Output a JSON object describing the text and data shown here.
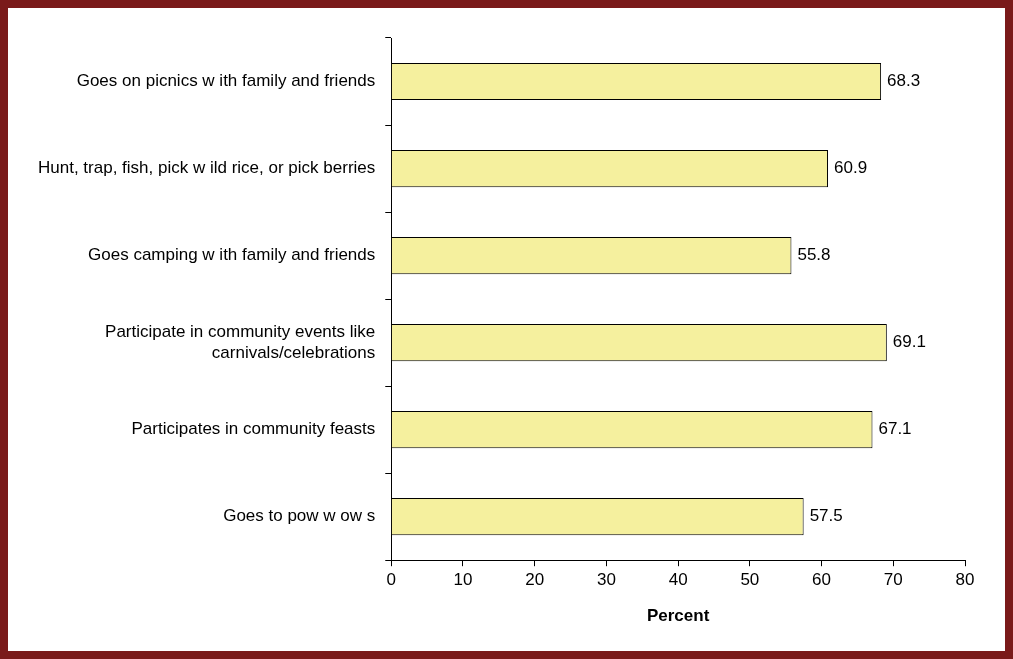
{
  "chart_data": {
    "type": "bar",
    "orientation": "horizontal",
    "xlabel": "Percent",
    "categories": [
      "Goes on picnics w ith family and friends",
      "Hunt, trap, fish, pick w ild rice, or pick berries",
      "Goes camping w ith family and friends",
      "Participate in community events like carnivals/celebrations",
      "Participates in community feasts",
      "Goes to pow w ow s"
    ],
    "values": [
      68.3,
      60.9,
      55.8,
      69.1,
      67.1,
      57.5
    ],
    "color": "#f5f09e",
    "xlim": [
      0,
      80
    ],
    "xticks": [
      0,
      10,
      20,
      30,
      40,
      50,
      60,
      70,
      80
    ],
    "data_labels": true,
    "grid": false,
    "legend": false
  }
}
